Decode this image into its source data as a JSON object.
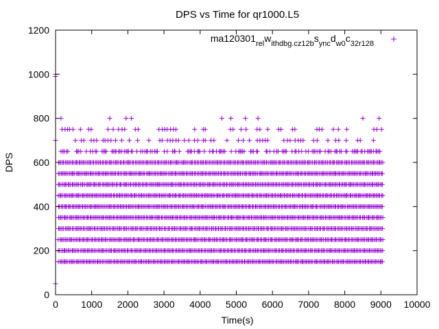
{
  "chart_data": {
    "type": "scatter",
    "title": "DPS vs Time for qr1000.L5",
    "xlabel": "Time(s)",
    "ylabel": "DPS",
    "xlim": [
      0,
      10000
    ],
    "ylim": [
      0,
      1200
    ],
    "xticks": [
      0,
      1000,
      2000,
      3000,
      4000,
      5000,
      6000,
      7000,
      8000,
      9000,
      10000
    ],
    "yticks": [
      0,
      200,
      400,
      600,
      800,
      1000,
      1200
    ],
    "grid": false,
    "legend_position": "top-right",
    "series": [
      {
        "name": "ma120301_rel_withdbg.cz12b_sync_d w0_c 32r128",
        "color": "#9400d3",
        "marker": "plus",
        "dense_levels": [
          150,
          200,
          250,
          300,
          350,
          400,
          450,
          500,
          550,
          600,
          650
        ],
        "sparse_levels": [
          700,
          750
        ],
        "x_range": [
          0,
          9050
        ],
        "extra_points": [
          [
            0,
            1000
          ],
          [
            0,
            990
          ],
          [
            0,
            50
          ],
          [
            0,
            700
          ],
          [
            150,
            800
          ],
          [
            1500,
            800
          ],
          [
            1950,
            800
          ],
          [
            2100,
            800
          ],
          [
            4600,
            800
          ],
          [
            4850,
            800
          ],
          [
            5250,
            800
          ],
          [
            5600,
            800
          ],
          [
            8500,
            800
          ],
          [
            8950,
            800
          ]
        ]
      }
    ]
  }
}
